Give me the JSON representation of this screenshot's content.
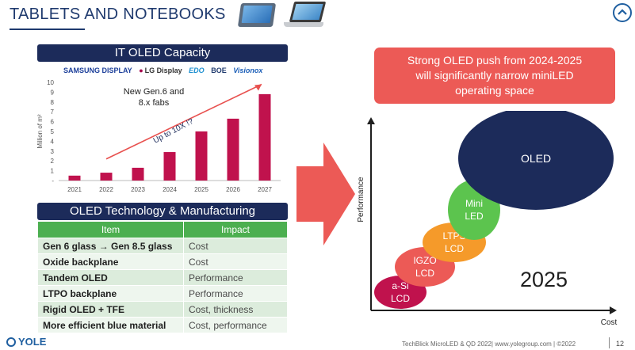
{
  "header": {
    "title": "TABLETS AND NOTEBOOKS"
  },
  "capacity": {
    "banner": "IT OLED Capacity",
    "logos": [
      "SAMSUNG DISPLAY",
      "LG Display",
      "EDO",
      "BOE",
      "Visionox"
    ]
  },
  "tech": {
    "banner": "OLED Technology & Manufacturing",
    "headers": [
      "Item",
      "Impact"
    ],
    "rows": [
      [
        "Gen 6 glass → Gen 8.5 glass",
        "Cost"
      ],
      [
        "Oxide backplane",
        "Cost"
      ],
      [
        "Tandem OLED",
        "Performance"
      ],
      [
        "LTPO backplane",
        "Performance"
      ],
      [
        "Rigid OLED + TFE",
        "Cost, thickness"
      ],
      [
        "More efficient blue material",
        "Cost, performance"
      ]
    ]
  },
  "callout": {
    "lines": [
      "Strong OLED push from 2024-2025",
      "will significantly narrow miniLED",
      "operating space"
    ]
  },
  "footer": {
    "logo": "YOLE",
    "text": "TechBlick MicroLED & QD 2022| www.yolegroup.com | ©2022",
    "page_number": "12"
  },
  "colors": {
    "navy": "#1c2b5a",
    "bar": "#c0124d",
    "trend_arrow": "#e8514f",
    "table_header": "#4caf50",
    "callout": "#ec5a56",
    "oled": "#1c2b5a",
    "mini_led": "#5cc44e",
    "ltps": "#f59a2a",
    "igzo": "#ec5a56",
    "a_si": "#c0124d"
  },
  "chart_data": [
    {
      "type": "bar",
      "title": "",
      "ylabel": "Million of m²",
      "xlabel": "",
      "categories": [
        "2021",
        "2022",
        "2023",
        "2024",
        "2025",
        "2026",
        "2027"
      ],
      "values": [
        0.5,
        0.8,
        1.3,
        2.9,
        5.0,
        6.3,
        8.8
      ],
      "ylim": [
        0,
        10
      ],
      "yticks": [
        "-",
        "1",
        "2",
        "3",
        "4",
        "5",
        "6",
        "7",
        "8",
        "9",
        "10"
      ],
      "annotations": [
        "New Gen.6 and",
        "8.x fabs",
        "Up to 10X !?"
      ],
      "grid": false
    },
    {
      "type": "scatter",
      "xlabel": "Cost",
      "ylabel": "Performance",
      "annotation": "2025",
      "points": [
        {
          "label": [
            "a-Si",
            "LCD"
          ],
          "cost": 1,
          "performance": 1,
          "size": 1
        },
        {
          "label": [
            "IGZO",
            "LCD"
          ],
          "cost": 2,
          "performance": 2,
          "size": 1.3
        },
        {
          "label": [
            "LTPS",
            "LCD"
          ],
          "cost": 3,
          "performance": 3,
          "size": 1.6
        },
        {
          "label": [
            "Mini",
            "LED"
          ],
          "cost": 4,
          "performance": 4,
          "size": 1.6
        },
        {
          "label": [
            "OLED"
          ],
          "cost": 6,
          "performance": 6,
          "size": 5.5
        }
      ]
    }
  ]
}
